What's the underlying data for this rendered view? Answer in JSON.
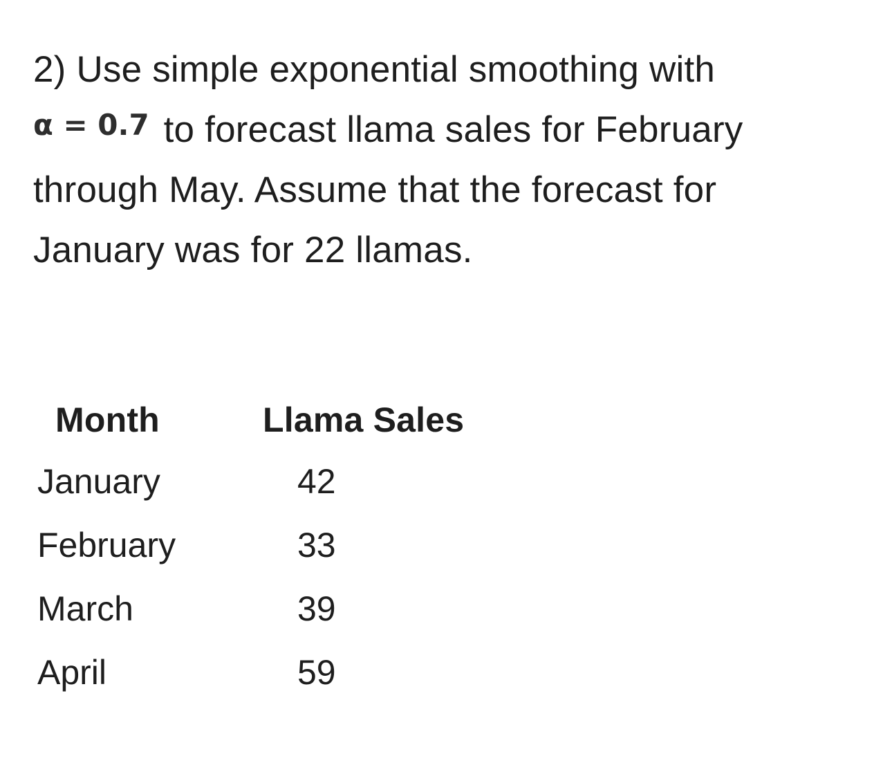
{
  "problem": {
    "line1": "2) Use simple exponential smoothing with",
    "alpha_expression": "α = 0.7",
    "text_after": " to forecast llama sales for February through May. Assume that the forecast for January was for 22 llamas."
  },
  "table": {
    "headers": {
      "month": "Month",
      "sales": "Llama Sales"
    },
    "rows": [
      {
        "month": "January",
        "sales": "42"
      },
      {
        "month": "February",
        "sales": "33"
      },
      {
        "month": "March",
        "sales": "39"
      },
      {
        "month": "April",
        "sales": "59"
      }
    ]
  }
}
